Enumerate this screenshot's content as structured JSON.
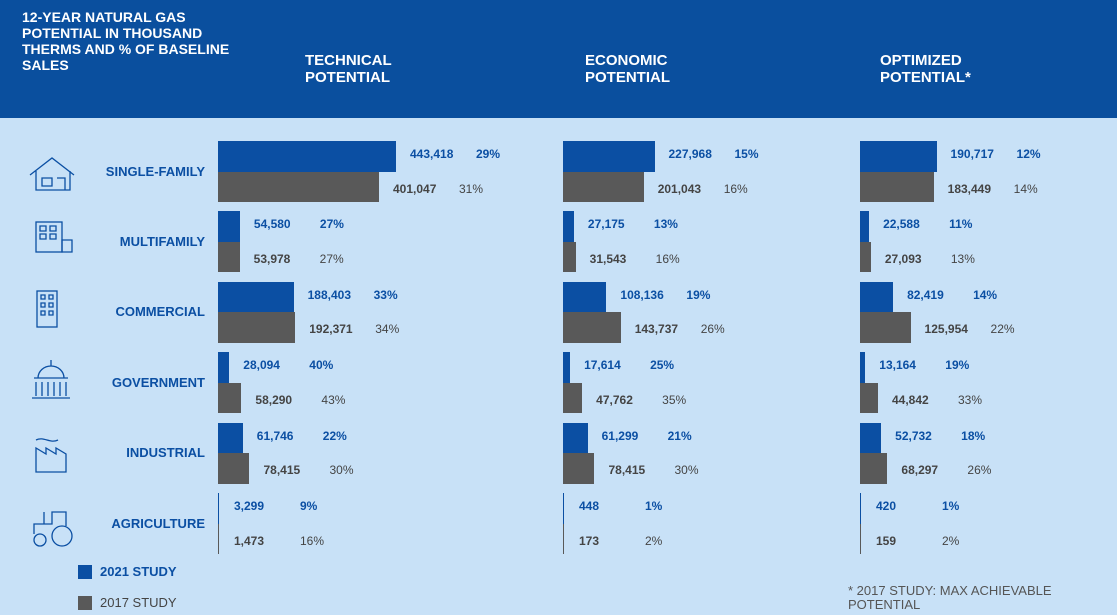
{
  "header": {
    "title": "12-YEAR NATURAL GAS POTENTIAL IN THOUSAND THERMS AND % OF BASELINE SALES"
  },
  "chart_data": {
    "type": "bar",
    "orientation": "horizontal",
    "categories": [
      "SINGLE-FAMILY",
      "MULTIFAMILY",
      "COMMERCIAL",
      "GOVERNMENT",
      "INDUSTRIAL",
      "AGRICULTURE"
    ],
    "legend": [
      {
        "name": "2021 STUDY",
        "color": "#0b4fa3"
      },
      {
        "name": "2017 STUDY",
        "color": "#595959"
      }
    ],
    "panels": [
      {
        "title": "TECHNICAL POTENTIAL",
        "series": [
          {
            "values": [
              443418,
              54580,
              188403,
              28094,
              61746,
              3299
            ],
            "value_labels": [
              "443,418",
              "54,580",
              "188,403",
              "28,094",
              "61,746",
              "3,299"
            ],
            "percent_labels": [
              "29%",
              "27%",
              "33%",
              "40%",
              "22%",
              "9%"
            ]
          },
          {
            "values": [
              401047,
              53978,
              192371,
              58290,
              78415,
              1473
            ],
            "value_labels": [
              "401,047",
              "53,978",
              "192,371",
              "58,290",
              "78,415",
              "1,473"
            ],
            "percent_labels": [
              "31%",
              "27%",
              "34%",
              "43%",
              "30%",
              "16%"
            ]
          }
        ]
      },
      {
        "title": "ECONOMIC POTENTIAL",
        "series": [
          {
            "values": [
              227968,
              27175,
              108136,
              17614,
              61299,
              448
            ],
            "value_labels": [
              "227,968",
              "27,175",
              "108,136",
              "17,614",
              "61,299",
              "448"
            ],
            "percent_labels": [
              "15%",
              "13%",
              "19%",
              "25%",
              "21%",
              "1%"
            ]
          },
          {
            "values": [
              201043,
              31543,
              143737,
              47762,
              78415,
              173
            ],
            "value_labels": [
              "201,043",
              "31,543",
              "143,737",
              "47,762",
              "78,415",
              "173"
            ],
            "percent_labels": [
              "16%",
              "16%",
              "26%",
              "35%",
              "30%",
              "2%"
            ]
          }
        ]
      },
      {
        "title": "OPTIMIZED POTENTIAL*",
        "series": [
          {
            "values": [
              190717,
              22588,
              82419,
              13164,
              52732,
              420
            ],
            "value_labels": [
              "190,717",
              "22,588",
              "82,419",
              "13,164",
              "52,732",
              "420"
            ],
            "percent_labels": [
              "12%",
              "11%",
              "14%",
              "19%",
              "18%",
              "1%"
            ]
          },
          {
            "values": [
              183449,
              27093,
              125954,
              44842,
              68297,
              159
            ],
            "value_labels": [
              "183,449",
              "27,093",
              "125,954",
              "44,842",
              "68,297",
              "159"
            ],
            "percent_labels": [
              "14%",
              "13%",
              "22%",
              "33%",
              "26%",
              "2%"
            ]
          }
        ]
      }
    ]
  },
  "footnote": "* 2017 STUDY: MAX ACHIEVABLE POTENTIAL"
}
